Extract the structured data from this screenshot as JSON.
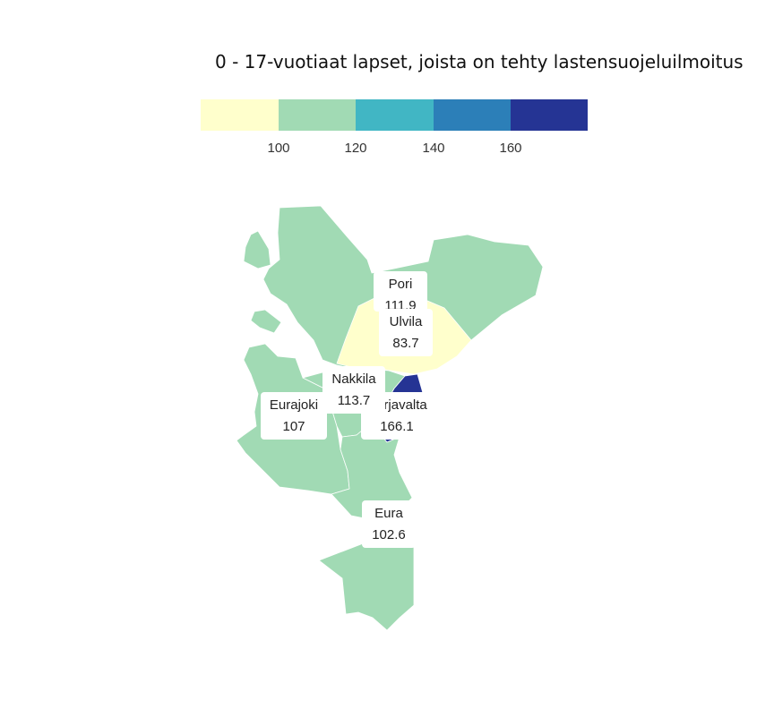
{
  "title": "0 - 17-vuotiaat lapset, joista on tehty lastensuojeluilmoitus",
  "legend": {
    "colors": [
      "#ffffcc",
      "#a1dab4",
      "#41b6c4",
      "#2c7fb8",
      "#253494"
    ],
    "ticks": [
      "100",
      "120",
      "140",
      "160"
    ]
  },
  "municipalities": [
    {
      "name": "Pori",
      "value": "111.9",
      "color": "#a1dab4"
    },
    {
      "name": "Ulvila",
      "value": "83.7",
      "color": "#ffffcc"
    },
    {
      "name": "Nakkila",
      "value": "113.7",
      "color": "#a1dab4"
    },
    {
      "name": "Eurajoki",
      "value": "107",
      "color": "#a1dab4"
    },
    {
      "name": "Harjavalta",
      "value": "166.1",
      "color": "#253494"
    },
    {
      "name": "Eura",
      "value": "102.6",
      "color": "#a1dab4"
    }
  ]
}
